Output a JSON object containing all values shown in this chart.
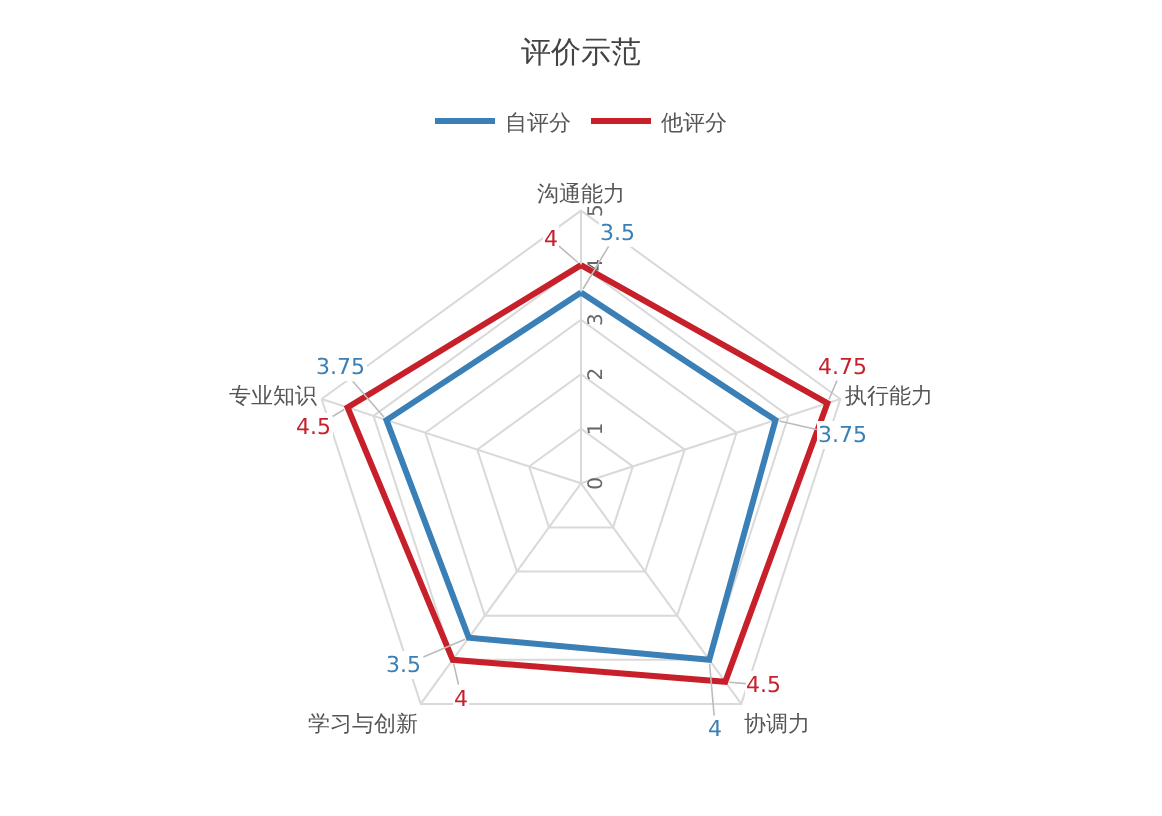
{
  "chart_data": {
    "type": "radar",
    "title": "评价示范",
    "categories": [
      "沟通能力",
      "执行能力",
      "协调力",
      "学习与创新",
      "专业知识"
    ],
    "series": [
      {
        "name": "自评分",
        "color": "#3a7fb5",
        "values": [
          3.5,
          3.75,
          4,
          3.5,
          3.75
        ]
      },
      {
        "name": "他评分",
        "color": "#c8202a",
        "values": [
          4,
          4.75,
          4.5,
          4,
          4.5
        ]
      }
    ],
    "ylim": [
      0,
      5
    ],
    "yticks": [
      0,
      1,
      2,
      3,
      4,
      5
    ],
    "data_labels": true,
    "legend": "top",
    "grid": true,
    "marker": "none",
    "line_style": "solid"
  }
}
